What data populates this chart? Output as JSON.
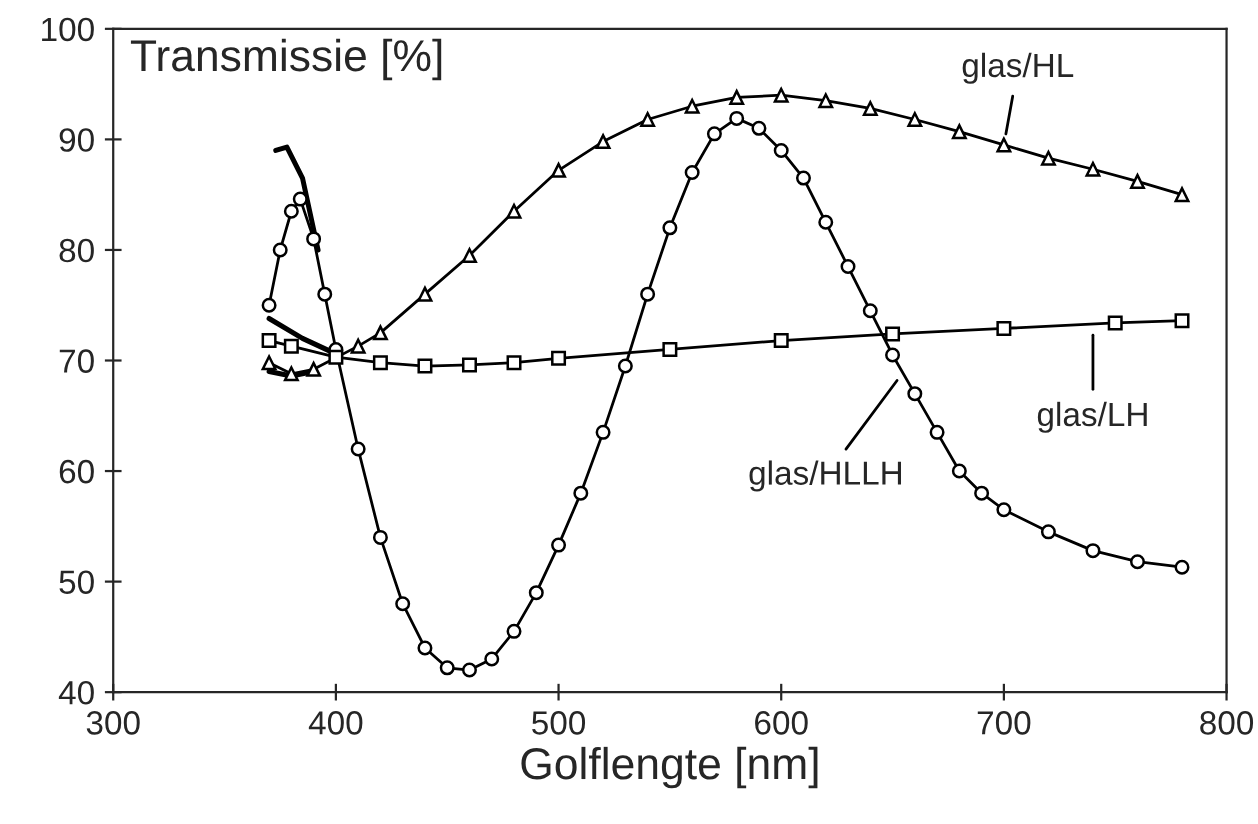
{
  "chart_data": {
    "type": "line",
    "title": "Transmissie [%]",
    "xlabel": "Golflengte [nm]",
    "xlim": [
      300,
      800
    ],
    "xticks": [
      300,
      400,
      500,
      600,
      700,
      800
    ],
    "ylim": [
      40,
      100
    ],
    "yticks": [
      40,
      50,
      60,
      70,
      80,
      90,
      100
    ],
    "grid": false,
    "legend": false,
    "series": [
      {
        "color": "#000000",
        "marker": "none",
        "x": [
          373,
          378,
          385,
          392
        ],
        "values": [
          89,
          89.3,
          86.5,
          80
        ]
      },
      {
        "color": "#000000",
        "marker": "none",
        "x": [
          370,
          385,
          400
        ],
        "values": [
          73.8,
          72,
          70.6
        ]
      },
      {
        "color": "#000000",
        "marker": "none",
        "x": [
          370,
          380,
          390
        ],
        "values": [
          69,
          68.6,
          69
        ]
      },
      {
        "color": "#000000",
        "marker": "circle",
        "x": [
          370,
          375,
          380,
          384,
          390,
          395,
          400,
          410,
          420,
          430,
          440,
          450,
          460,
          470,
          480,
          490,
          500,
          510,
          520,
          530,
          540,
          550,
          560,
          570,
          580,
          590,
          600,
          610,
          620,
          630,
          640,
          650,
          660,
          670,
          680,
          690,
          700,
          720,
          740,
          760,
          780
        ],
        "values": [
          75,
          80,
          83.5,
          84.6,
          81,
          76,
          71,
          62,
          54,
          48,
          44,
          42.2,
          42,
          43,
          45.5,
          49,
          53.3,
          58,
          63.5,
          69.5,
          76,
          82,
          87,
          90.5,
          91.9,
          91,
          89,
          86.5,
          82.5,
          78.5,
          74.5,
          70.5,
          67,
          63.5,
          60,
          58,
          56.5,
          54.5,
          52.8,
          51.8,
          51.3
        ]
      },
      {
        "color": "#000000",
        "marker": "triangle",
        "x": [
          370,
          380,
          390,
          410,
          420,
          440,
          460,
          480,
          500,
          520,
          540,
          560,
          580,
          600,
          620,
          640,
          660,
          680,
          700,
          720,
          740,
          760,
          780
        ],
        "values": [
          69.8,
          68.8,
          69.2,
          71.3,
          72.5,
          76,
          79.5,
          83.5,
          87.2,
          89.8,
          91.8,
          93,
          93.8,
          94,
          93.5,
          92.8,
          91.8,
          90.7,
          89.5,
          88.3,
          87.3,
          86.2,
          85
        ]
      },
      {
        "color": "#000000",
        "marker": "square",
        "x": [
          370,
          380,
          400,
          420,
          440,
          460,
          480,
          500,
          550,
          600,
          650,
          700,
          750,
          780
        ],
        "values": [
          71.8,
          71.3,
          70.3,
          69.8,
          69.5,
          69.6,
          69.8,
          70.2,
          71,
          71.8,
          72.4,
          72.9,
          73.4,
          73.6
        ]
      }
    ],
    "annotations": [
      {
        "text": "glas/HL",
        "x": 700,
        "y": 89.5
      },
      {
        "text": "glas/LH",
        "x": 740,
        "y": 73.3
      },
      {
        "text": "glas/HLLH",
        "x": 655,
        "y": 69
      }
    ]
  }
}
